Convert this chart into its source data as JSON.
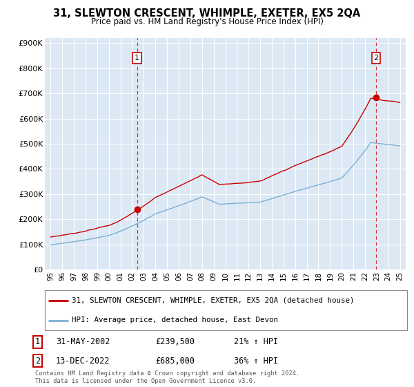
{
  "title": "31, SLEWTON CRESCENT, WHIMPLE, EXETER, EX5 2QA",
  "subtitle": "Price paid vs. HM Land Registry's House Price Index (HPI)",
  "ylabel_ticks": [
    "£0",
    "£100K",
    "£200K",
    "£300K",
    "£400K",
    "£500K",
    "£600K",
    "£700K",
    "£800K",
    "£900K"
  ],
  "ytick_values": [
    0,
    100000,
    200000,
    300000,
    400000,
    500000,
    600000,
    700000,
    800000,
    900000
  ],
  "ylim": [
    0,
    920000
  ],
  "xlim_start": 1994.5,
  "xlim_end": 2025.5,
  "hpi_color": "#7bafd4",
  "price_color": "#cc0000",
  "transaction1_price": 239500,
  "transaction1_year": 2002.42,
  "transaction2_price": 685000,
  "transaction2_year": 2022.95,
  "legend_line1": "31, SLEWTON CRESCENT, WHIMPLE, EXETER, EX5 2QA (detached house)",
  "legend_line2": "HPI: Average price, detached house, East Devon",
  "transaction1_date": "31-MAY-2002",
  "transaction1_pct": "21% ↑ HPI",
  "transaction2_date": "13-DEC-2022",
  "transaction2_pct": "36% ↑ HPI",
  "footer": "Contains HM Land Registry data © Crown copyright and database right 2024.\nThis data is licensed under the Open Government Licence v3.0.",
  "background_color": "#ffffff",
  "chart_bg_color": "#dce9f5",
  "grid_color": "#ffffff",
  "dashed_vline_color": "#cc0000",
  "x_tick_labels": [
    "95",
    "96",
    "97",
    "98",
    "99",
    "00",
    "01",
    "02",
    "03",
    "04",
    "05",
    "06",
    "07",
    "08",
    "09",
    "10",
    "11",
    "12",
    "13",
    "14",
    "15",
    "16",
    "17",
    "18",
    "19",
    "20",
    "21",
    "22",
    "23",
    "24",
    "25"
  ],
  "x_tick_years": [
    1995,
    1996,
    1997,
    1998,
    1999,
    2000,
    2001,
    2002,
    2003,
    2004,
    2005,
    2006,
    2007,
    2008,
    2009,
    2010,
    2011,
    2012,
    2013,
    2014,
    2015,
    2016,
    2017,
    2018,
    2019,
    2020,
    2021,
    2022,
    2023,
    2024,
    2025
  ]
}
